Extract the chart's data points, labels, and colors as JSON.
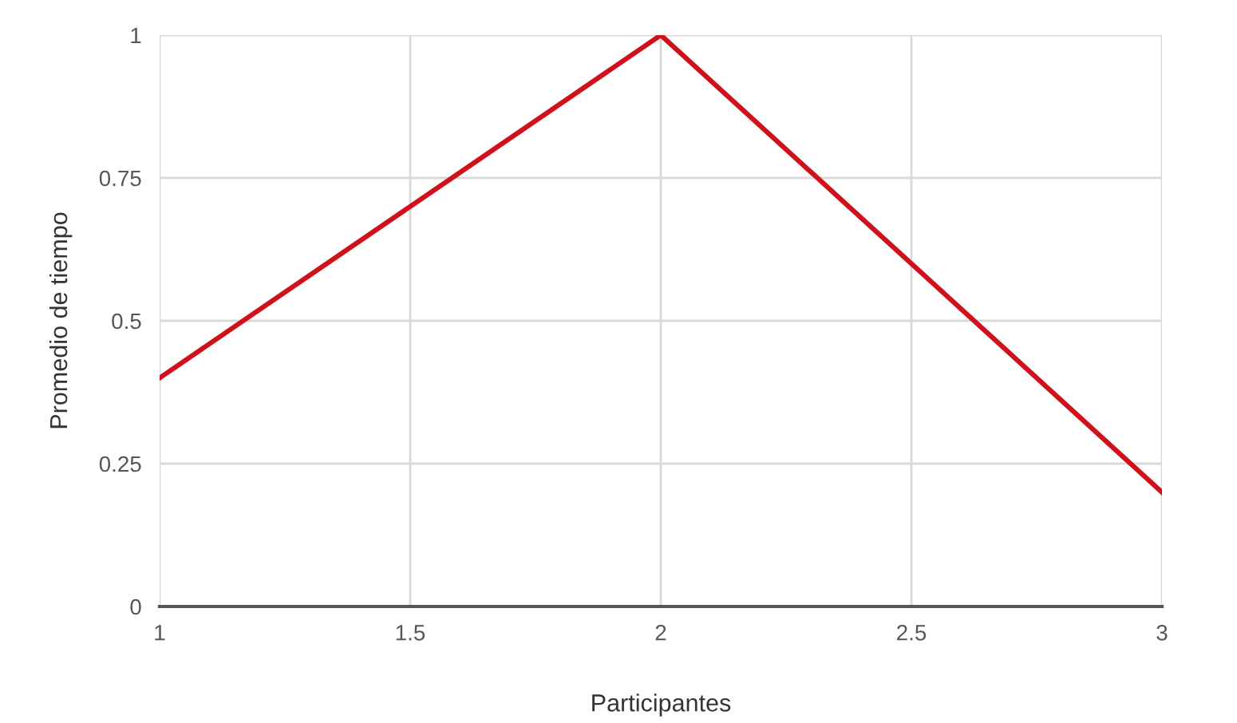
{
  "chart_data": {
    "type": "line",
    "xlabel": "Participantes",
    "ylabel": "Promedio de tiempo",
    "x": [
      1,
      2,
      3
    ],
    "series": [
      {
        "color": "#d0111b",
        "values": [
          0.4,
          1,
          0.2
        ]
      }
    ],
    "xlim": [
      1,
      3
    ],
    "xticks": [
      1,
      1.5,
      2,
      2.5,
      3
    ],
    "ylim": [
      0,
      1
    ],
    "yticks": [
      0,
      0.25,
      0.5,
      0.75,
      1
    ],
    "grid": true,
    "marker": "none",
    "line_style": "solid"
  }
}
